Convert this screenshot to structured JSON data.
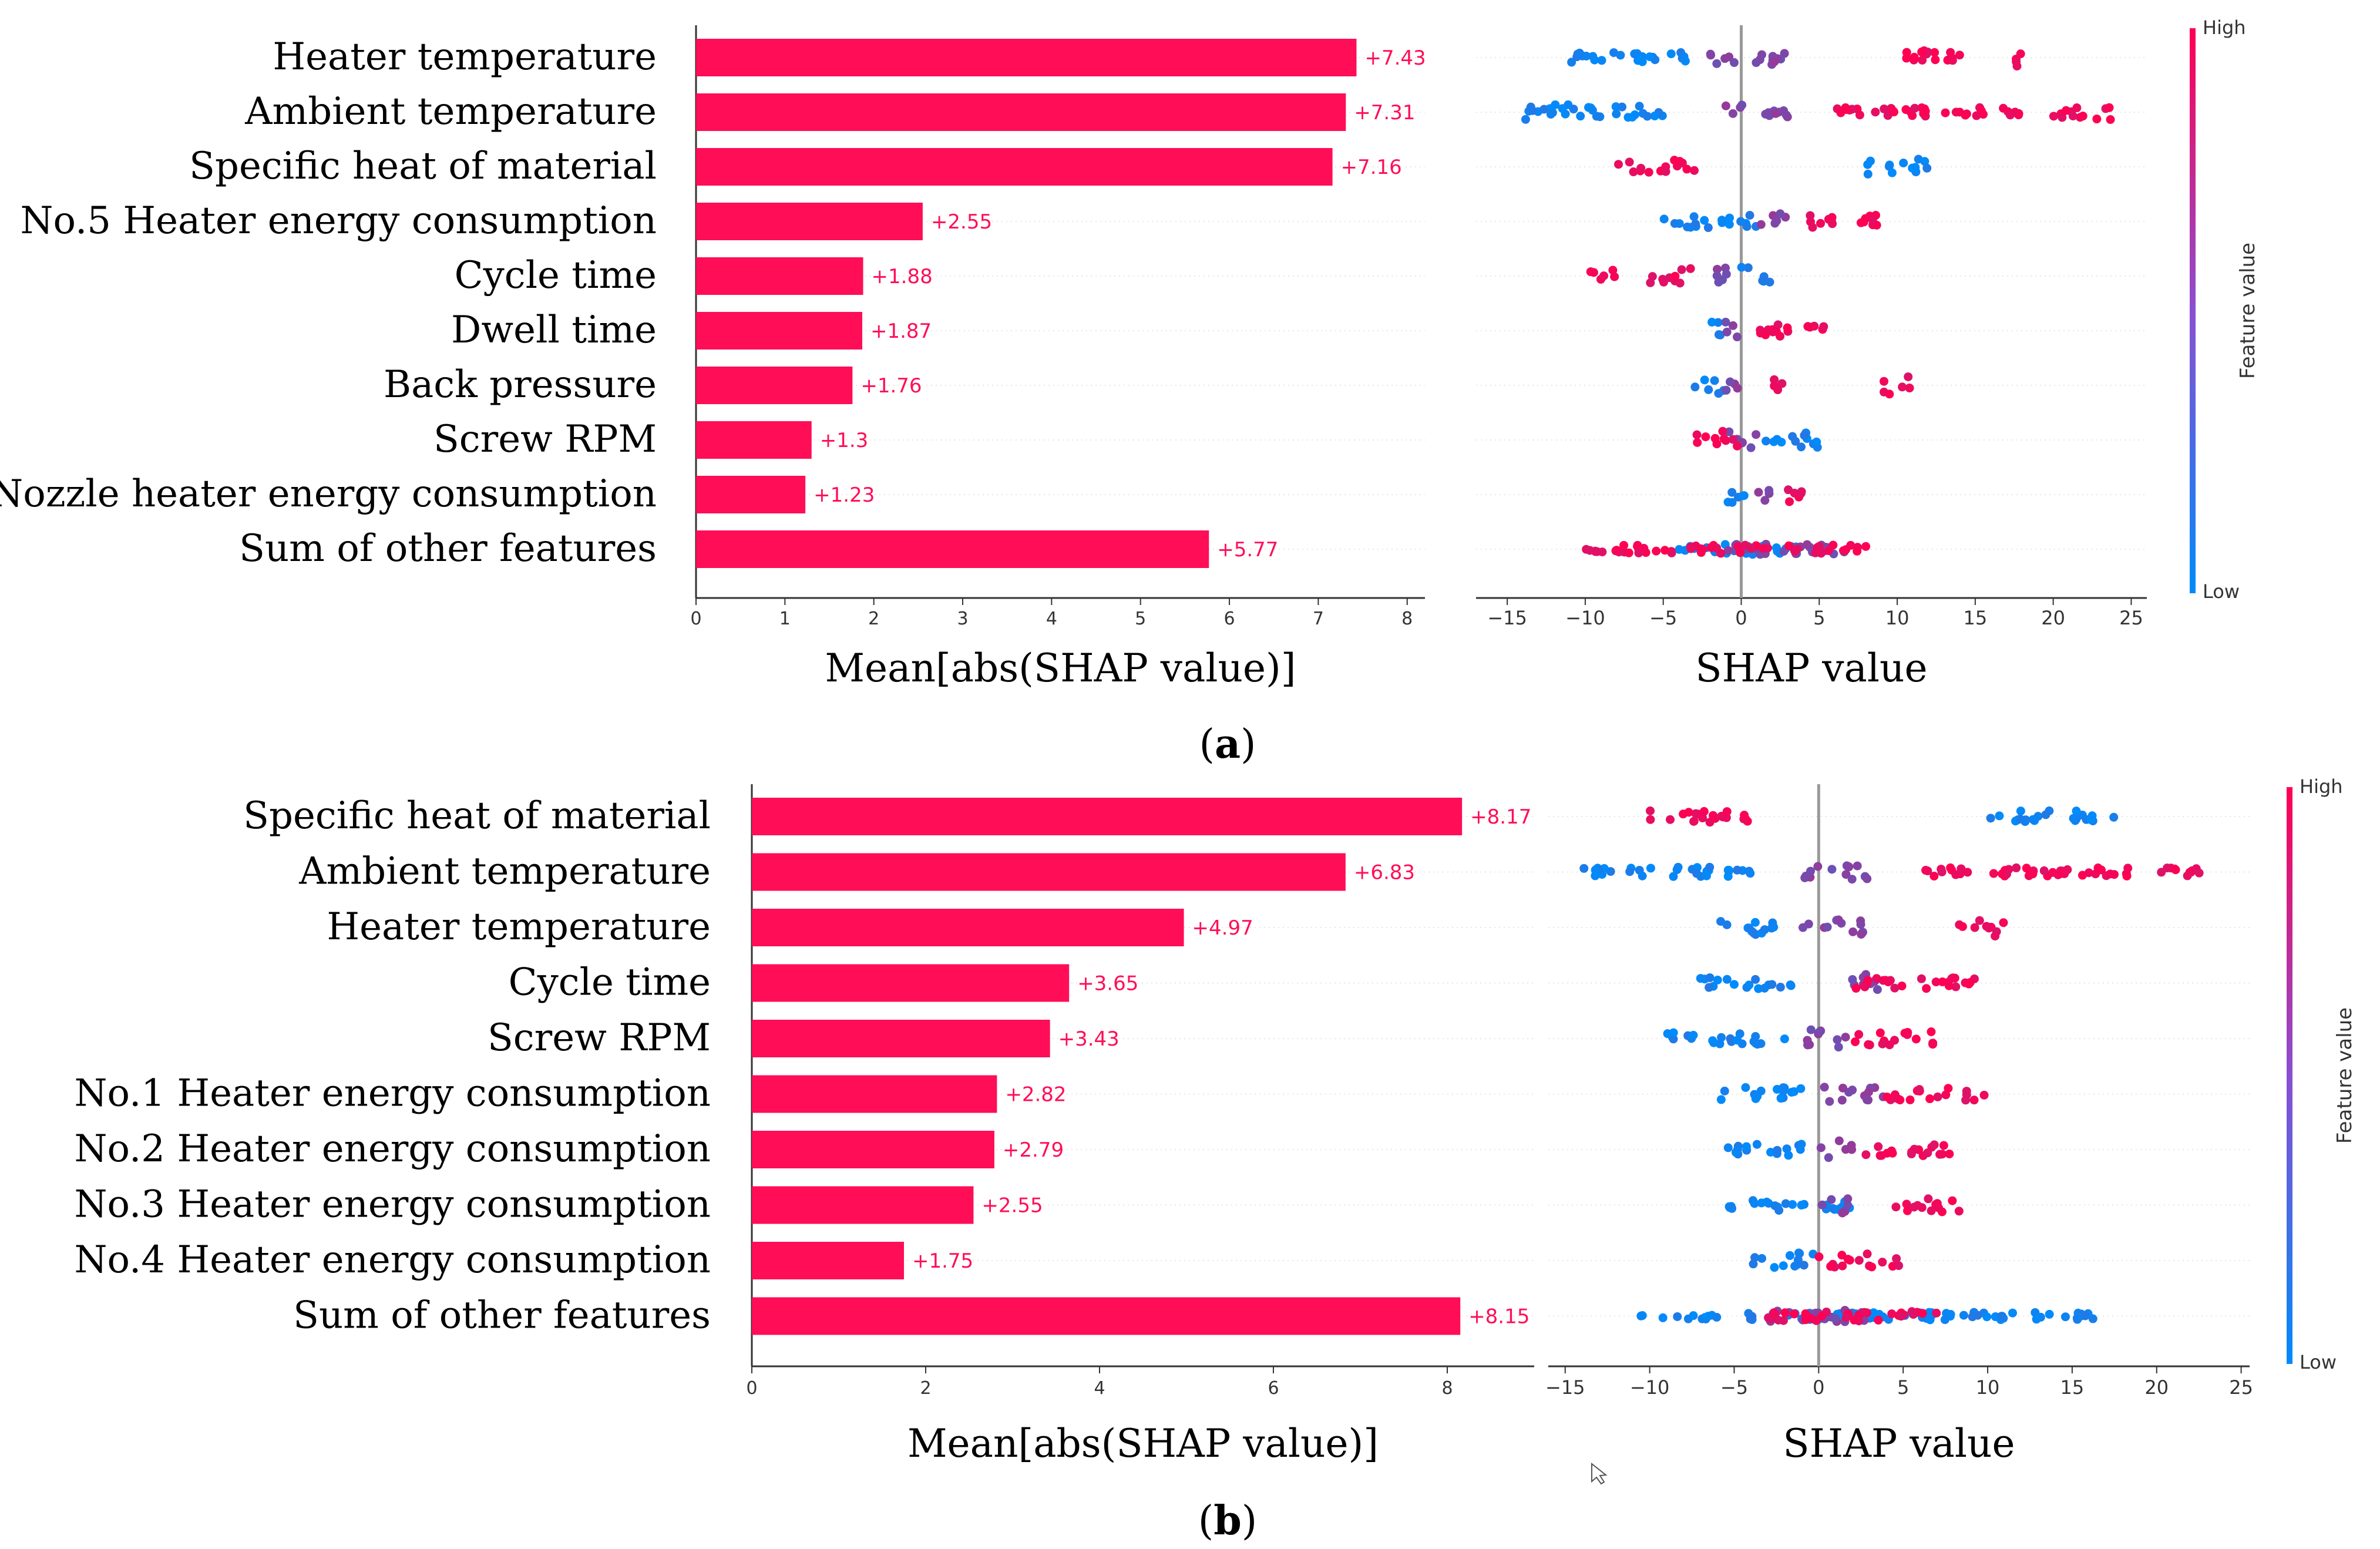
{
  "colors": {
    "bar": "#ff0d57",
    "high": "#ff0052",
    "low": "#008bfb",
    "mid": "#8a4fd0",
    "axis": "#333333",
    "grid": "#e6e6e6",
    "zero": "#999999"
  },
  "chart_data": [
    {
      "panel": "a",
      "caption_prefix": "(",
      "caption_letter": "a",
      "caption_suffix": ")",
      "bar": {
        "type": "bar",
        "orientation": "horizontal",
        "categories": [
          "Heater temperature",
          "Ambient temperature",
          "Specific heat of material",
          "No.5 Heater energy consumption",
          "Cycle time",
          "Dwell time",
          "Back pressure",
          "Screw RPM",
          "Nozzle heater energy consumption",
          "Sum of other features"
        ],
        "values": [
          7.43,
          7.31,
          7.16,
          2.55,
          1.88,
          1.87,
          1.76,
          1.3,
          1.23,
          5.77
        ],
        "value_labels": [
          "+7.43",
          "+7.31",
          "+7.16",
          "+2.55",
          "+1.88",
          "+1.87",
          "+1.76",
          "+1.3",
          "+1.23",
          "+5.77"
        ],
        "xlabel": "Mean[abs(SHAP value)]",
        "xlim": [
          0,
          8.2
        ],
        "xticks": [
          "0",
          "1",
          "2",
          "3",
          "4",
          "5",
          "6",
          "7",
          "8"
        ]
      },
      "beeswarm": {
        "type": "scatter",
        "xlabel": "SHAP value",
        "xlim": [
          -17,
          26
        ],
        "xticks": [
          "−15",
          "−10",
          "−5",
          "0",
          "5",
          "10",
          "15",
          "20",
          "25"
        ],
        "colorbar": {
          "label": "Feature value",
          "high": "High",
          "low": "Low"
        },
        "rows": [
          {
            "feature": "Heater temperature",
            "low": [
              [
                -12,
                -5.5
              ],
              [
                -4.5,
                -3
              ]
            ],
            "mid": [
              [
                -2,
                3
              ]
            ],
            "high": [
              [
                10,
                15
              ],
              [
                17.5,
                18
              ]
            ]
          },
          {
            "feature": "Ambient temperature",
            "low": [
              [
                -15,
                -11
              ],
              [
                -11,
                -5
              ]
            ],
            "mid": [
              [
                -1,
                3
              ]
            ],
            "high": [
              [
                6,
                18
              ],
              [
                20,
                24
              ]
            ]
          },
          {
            "feature": "Specific heat of material",
            "low": [
              [
                8,
                12
              ]
            ],
            "mid": [],
            "high": [
              [
                -8,
                -3
              ]
            ]
          },
          {
            "feature": "No.5 Heater energy consumption",
            "low": [
              [
                -5,
                1
              ]
            ],
            "mid": [
              [
                1,
                3
              ]
            ],
            "high": [
              [
                4,
                9
              ]
            ]
          },
          {
            "feature": "Cycle time",
            "low": [
              [
                0,
                2
              ]
            ],
            "mid": [
              [
                -2,
                0
              ]
            ],
            "high": [
              [
                -10,
                -8
              ],
              [
                -6,
                -3
              ]
            ]
          },
          {
            "feature": "Dwell time",
            "low": [
              [
                -2,
                -1
              ]
            ],
            "mid": [
              [
                -1,
                0
              ]
            ],
            "high": [
              [
                1,
                6
              ]
            ]
          },
          {
            "feature": "Back pressure",
            "low": [
              [
                -3,
                -1
              ]
            ],
            "mid": [
              [
                -1,
                0
              ]
            ],
            "high": [
              [
                2,
                3
              ],
              [
                9,
                11
              ]
            ]
          },
          {
            "feature": "Screw RPM",
            "low": [
              [
                1,
                5
              ]
            ],
            "mid": [
              [
                -1,
                1
              ]
            ],
            "high": [
              [
                -3,
                0
              ]
            ]
          },
          {
            "feature": "Nozzle heater energy consumption",
            "low": [
              [
                -1,
                1
              ]
            ],
            "mid": [
              [
                1,
                2
              ]
            ],
            "high": [
              [
                2,
                4
              ]
            ]
          },
          {
            "feature": "Sum of other features",
            "low": [
              [
                -4,
                4
              ]
            ],
            "mid": [
              [
                -1,
                7
              ]
            ],
            "high": [
              [
                -10,
                8
              ]
            ]
          }
        ]
      }
    },
    {
      "panel": "b",
      "caption_prefix": "(",
      "caption_letter": "b",
      "caption_suffix": ")",
      "bar": {
        "type": "bar",
        "orientation": "horizontal",
        "categories": [
          "Specific heat of material",
          "Ambient temperature",
          "Heater temperature",
          "Cycle time",
          "Screw RPM",
          "No.1 Heater energy consumption",
          "No.2 Heater energy consumption",
          "No.3 Heater energy consumption",
          "No.4 Heater energy consumption",
          "Sum of other features"
        ],
        "values": [
          8.17,
          6.83,
          4.97,
          3.65,
          3.43,
          2.82,
          2.79,
          2.55,
          1.75,
          8.15
        ],
        "value_labels": [
          "+8.17",
          "+6.83",
          "+4.97",
          "+3.65",
          "+3.43",
          "+2.82",
          "+2.79",
          "+2.55",
          "+1.75",
          "+8.15"
        ],
        "xlabel": "Mean[abs(SHAP value)]",
        "xlim": [
          0,
          9.0
        ],
        "xticks": [
          "0",
          "2",
          "4",
          "6",
          "8"
        ]
      },
      "beeswarm": {
        "type": "scatter",
        "xlabel": "SHAP value",
        "xlim": [
          -16,
          25.5
        ],
        "xticks": [
          "−15",
          "−10",
          "−5",
          "0",
          "5",
          "10",
          "15",
          "20",
          "25"
        ],
        "colorbar": {
          "label": "Feature value",
          "high": "High",
          "low": "Low"
        },
        "rows": [
          {
            "feature": "Specific heat of material",
            "low": [
              [
                10,
                17.5
              ]
            ],
            "mid": [],
            "high": [
              [
                -10,
                -3
              ]
            ]
          },
          {
            "feature": "Ambient temperature",
            "low": [
              [
                -14.5,
                -4
              ]
            ],
            "mid": [
              [
                -1,
                3
              ]
            ],
            "high": [
              [
                6,
                23
              ]
            ]
          },
          {
            "feature": "Heater temperature",
            "low": [
              [
                -6,
                -2
              ]
            ],
            "mid": [
              [
                -1,
                3
              ]
            ],
            "high": [
              [
                8,
                11
              ]
            ]
          },
          {
            "feature": "Cycle time",
            "low": [
              [
                -7,
                -1
              ]
            ],
            "mid": [
              [
                1,
                4
              ]
            ],
            "high": [
              [
                2,
                10
              ]
            ]
          },
          {
            "feature": "Screw RPM",
            "low": [
              [
                -9,
                -2
              ]
            ],
            "mid": [
              [
                -1,
                2
              ]
            ],
            "high": [
              [
                2,
                7
              ]
            ]
          },
          {
            "feature": "No.1 Heater energy consumption",
            "low": [
              [
                -6,
                -1
              ]
            ],
            "mid": [
              [
                0,
                4
              ]
            ],
            "high": [
              [
                4,
                10
              ]
            ]
          },
          {
            "feature": "No.2 Heater energy consumption",
            "low": [
              [
                -6,
                -1
              ]
            ],
            "mid": [
              [
                0,
                2
              ]
            ],
            "high": [
              [
                2,
                8
              ]
            ]
          },
          {
            "feature": "No.3 Heater energy consumption",
            "low": [
              [
                -6,
                2
              ]
            ],
            "mid": [
              [
                0,
                2
              ]
            ],
            "high": [
              [
                4,
                8.5
              ]
            ]
          },
          {
            "feature": "No.4 Heater energy consumption",
            "low": [
              [
                -4,
                0
              ]
            ],
            "mid": [],
            "high": [
              [
                0,
                5
              ]
            ]
          },
          {
            "feature": "Sum of other features",
            "low": [
              [
                -11,
                16.5
              ]
            ],
            "mid": [
              [
                -3,
                3
              ]
            ],
            "high": [
              [
                -3,
                7
              ]
            ]
          }
        ]
      }
    }
  ]
}
